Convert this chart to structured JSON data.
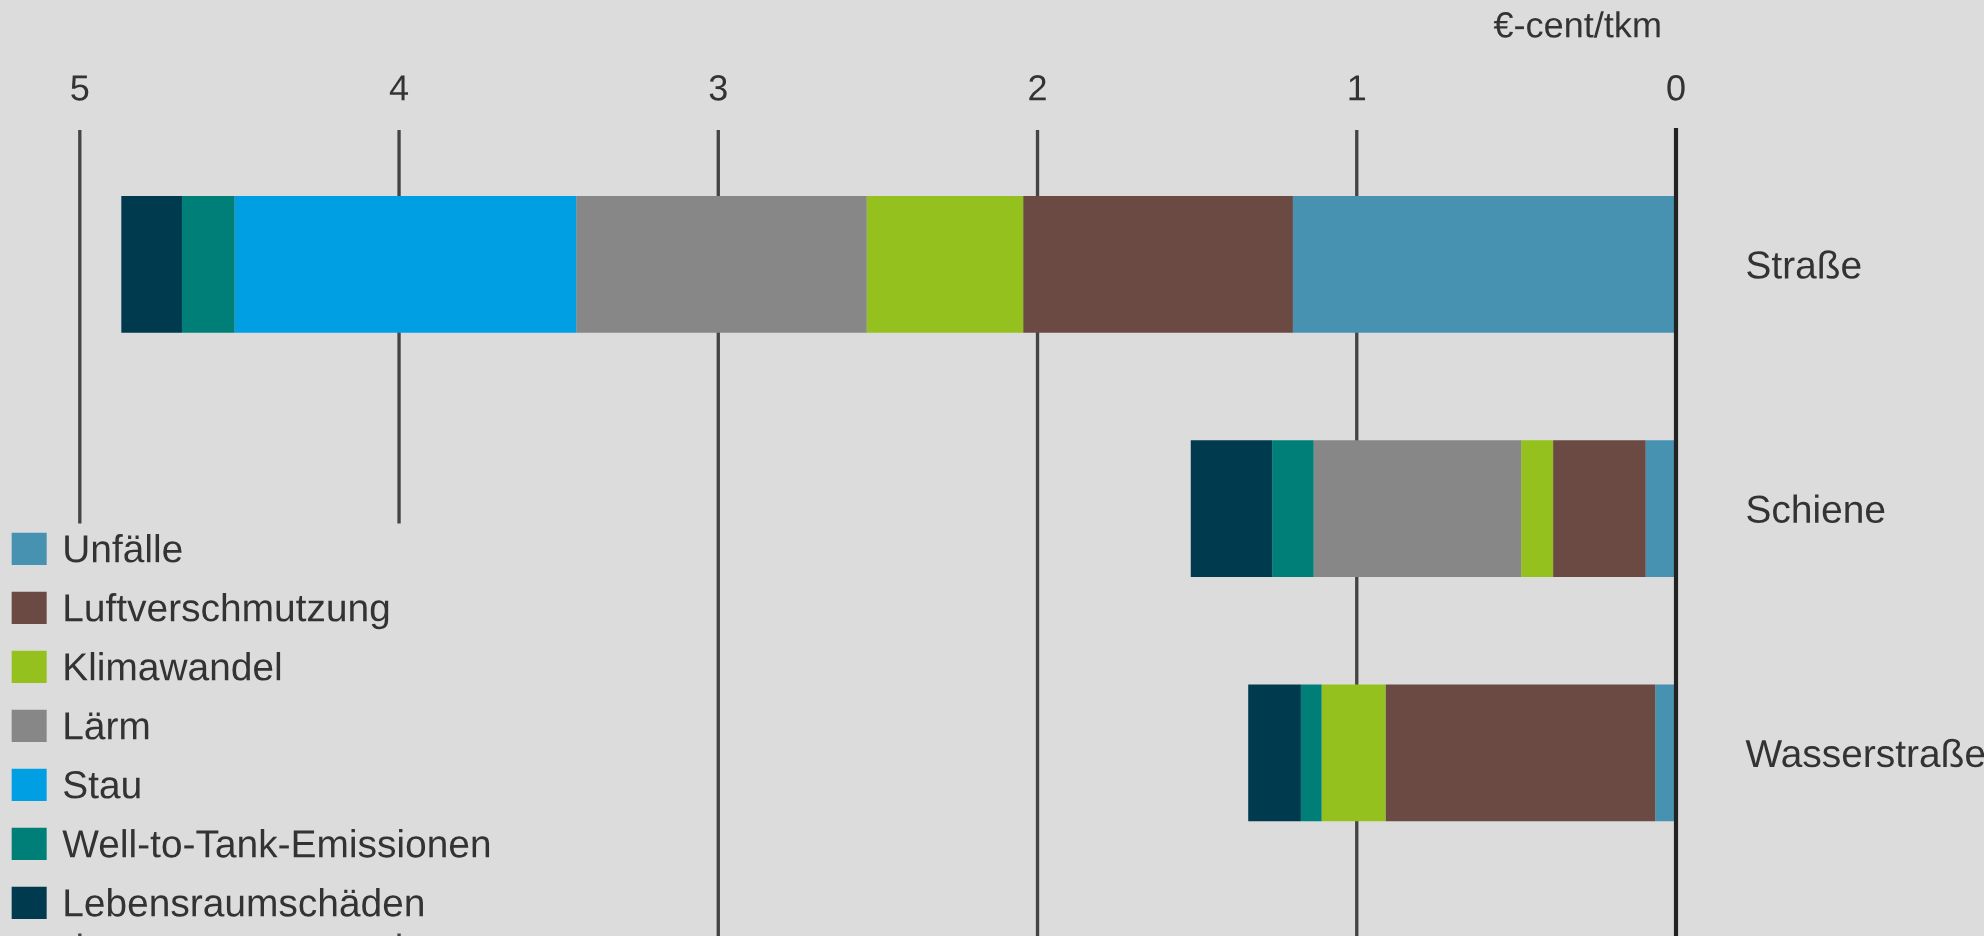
{
  "chart_data": {
    "type": "bar",
    "orientation": "horizontal",
    "stacked": true,
    "xlabel": "€-cent/tkm",
    "categories": [
      "Straße",
      "Schiene",
      "Wasserstraße"
    ],
    "series": [
      {
        "name": "Unfälle",
        "color": "#4692b0",
        "values": [
          1.2,
          0.095,
          0.065
        ]
      },
      {
        "name": "Luftverschmutzung",
        "color": "#6b4a43",
        "values": [
          0.845,
          0.29,
          0.845
        ]
      },
      {
        "name": "Klimawandel",
        "color": "#95c11f",
        "values": [
          0.49,
          0.1,
          0.2
        ]
      },
      {
        "name": "Lärm",
        "color": "#878787",
        "values": [
          0.91,
          0.65,
          0
        ]
      },
      {
        "name": "Stau",
        "color": "#009fe3",
        "values": [
          1.07,
          0,
          0
        ]
      },
      {
        "name": "Well-to-Tank-Emissionen",
        "color": "#007f78",
        "values": [
          0.165,
          0.13,
          0.065
        ]
      },
      {
        "name": "Lebensraumschäden",
        "color": "#003a4f",
        "values": [
          0.19,
          0.255,
          0.165
        ]
      }
    ],
    "xlim": [
      5.25,
      0
    ],
    "xticks": [
      5,
      4,
      3,
      2,
      1,
      0
    ],
    "grid": "x",
    "legend": "bottom left"
  }
}
